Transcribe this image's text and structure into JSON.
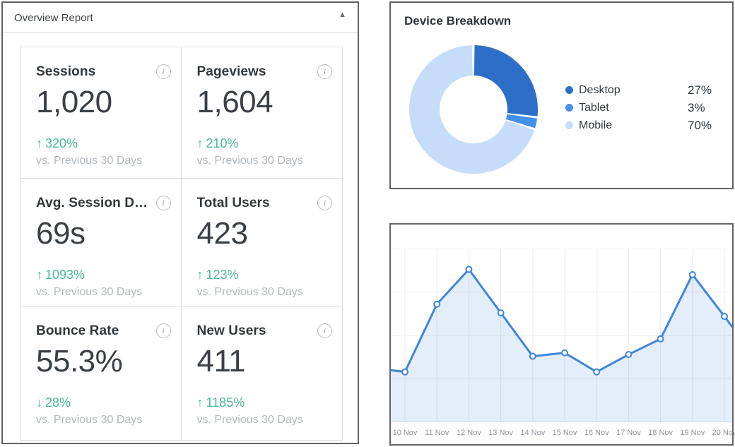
{
  "overview": {
    "title": "Overview Report",
    "collapse_icon": "▲",
    "metrics": [
      {
        "label": "Sessions",
        "value": "1,020",
        "arrow": "↑",
        "change": "320%",
        "vs": "vs. Previous 30 Days"
      },
      {
        "label": "Pageviews",
        "value": "1,604",
        "arrow": "↑",
        "change": "210%",
        "vs": "vs. Previous 30 Days"
      },
      {
        "label": "Avg. Session D…",
        "value": "69s",
        "arrow": "↑",
        "change": "1093%",
        "vs": "vs. Previous 30 Days"
      },
      {
        "label": "Total Users",
        "value": "423",
        "arrow": "↑",
        "change": "123%",
        "vs": "vs. Previous 30 Days"
      },
      {
        "label": "Bounce Rate",
        "value": "55.3%",
        "arrow": "↓",
        "change": "28%",
        "vs": "vs. Previous 30 Days"
      },
      {
        "label": "New Users",
        "value": "411",
        "arrow": "↑",
        "change": "1185%",
        "vs": "vs. Previous 30 Days"
      }
    ]
  },
  "device_breakdown": {
    "title": "Device Breakdown"
  },
  "chart_data": [
    {
      "type": "pie",
      "title": "Device Breakdown",
      "donut": true,
      "legend_position": "right",
      "slices": [
        {
          "label": "Desktop",
          "value": 27,
          "pct_label": "27%",
          "color": "#2d6fc8"
        },
        {
          "label": "Tablet",
          "value": 3,
          "pct_label": "3%",
          "color": "#4590ea"
        },
        {
          "label": "Mobile",
          "value": 70,
          "pct_label": "70%",
          "color": "#c5ddf8"
        }
      ]
    },
    {
      "type": "area",
      "title": "",
      "x": [
        "10 Nov",
        "11 Nov",
        "12 Nov",
        "13 Nov",
        "14 Nov",
        "15 Nov",
        "16 Nov",
        "17 Nov",
        "18 Nov",
        "19 Nov",
        "20 Nov"
      ],
      "values": [
        29,
        68,
        88,
        63,
        38,
        40,
        29,
        39,
        48,
        85,
        61
      ],
      "edge_values": {
        "left": 30,
        "right": 55
      },
      "ylim": [
        0,
        100
      ],
      "grid": true,
      "gridline_step": 25,
      "line_color": "#3e87dc",
      "fill_color": "rgba(62,135,220,0.14)",
      "marker": "circle-white"
    }
  ],
  "colors": {
    "positive_change": "#4ab99a",
    "muted_text": "#b2b8be",
    "grid_line": "#ececec",
    "axis_label": "#8d9298"
  }
}
